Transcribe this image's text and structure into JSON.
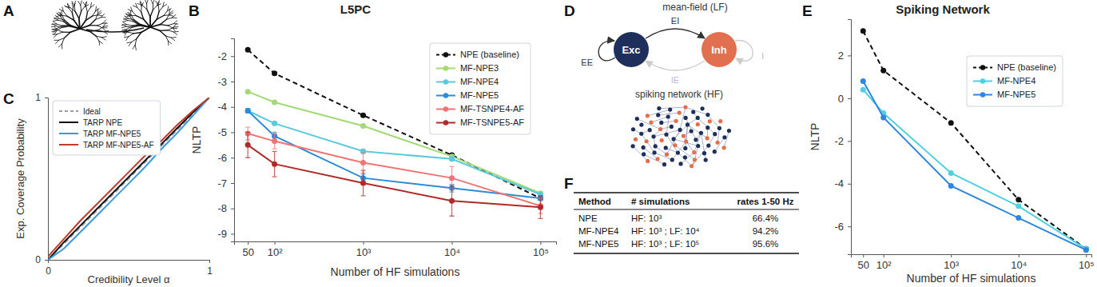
{
  "panel_labels": [
    "A",
    "B",
    "C",
    "D",
    "E",
    "F"
  ],
  "chart_data": [
    {
      "type": "line",
      "title": "L5PC",
      "x_label": "Number of HF simulations",
      "y_label": "NLTP",
      "log": "x",
      "marker": "circle",
      "legend": "upper-right",
      "x": [
        50,
        100,
        1000,
        10000,
        100000
      ],
      "xlim": [
        35,
        150000
      ],
      "xticks": [
        50,
        {
          "value": 100,
          "label": "10²"
        },
        {
          "value": 1000,
          "label": "10³"
        },
        {
          "value": 10000,
          "label": "10⁴"
        },
        {
          "value": 100000,
          "label": "10⁵"
        }
      ],
      "ylim": [
        -9.3,
        -1.3
      ],
      "yticks": [
        -9,
        -8,
        -7,
        -6,
        -5,
        -4,
        -3,
        -2
      ],
      "series": [
        {
          "name": "NPE (baseline)",
          "color": "#111111",
          "line_style": "dashed",
          "values": [
            -1.75,
            -2.68,
            -4.33,
            -5.9,
            -7.6
          ],
          "errors": [
            0.05,
            0.05,
            0.05,
            0.05,
            0.05
          ]
        },
        {
          "name": "MF-NPE3",
          "color": "#a3d977",
          "values": [
            -3.4,
            -3.82,
            -4.75,
            -5.95,
            -7.4
          ],
          "errors": [
            0.05,
            0.05,
            0.05,
            0.05,
            0.05
          ]
        },
        {
          "name": "MF-NPE4",
          "color": "#5cc9d8",
          "values": [
            -4.15,
            -4.65,
            -5.75,
            -6.05,
            -7.45
          ],
          "errors": [
            0.05,
            0.05,
            0.08,
            0.08,
            0.05
          ]
        },
        {
          "name": "MF-NPE5",
          "color": "#2e8bd6",
          "values": [
            -4.15,
            -5.15,
            -6.8,
            -7.2,
            -7.6
          ],
          "errors": [
            0.08,
            0.15,
            0.15,
            0.15,
            0.08
          ]
        },
        {
          "name": "MF-TSNPE4-AF",
          "color": "#ef7474",
          "values": [
            -5.05,
            -5.35,
            -6.2,
            -6.8,
            -7.9
          ],
          "errors": [
            0.25,
            0.3,
            0.4,
            0.45,
            0.3
          ]
        },
        {
          "name": "MF-TSNPE5-AF",
          "color": "#b02a2a",
          "values": [
            -5.5,
            -6.25,
            -7.0,
            -7.7,
            -7.95
          ],
          "errors": [
            0.5,
            0.5,
            0.5,
            0.6,
            0.45
          ]
        }
      ]
    },
    {
      "type": "line",
      "x_label": "Credibility Level α",
      "y_label": "Exp. Coverage Probability",
      "legend": "upper-left",
      "x": [
        0,
        0.1,
        0.2,
        0.3,
        0.4,
        0.5,
        0.6,
        0.7,
        0.8,
        0.9,
        1
      ],
      "xlim": [
        0,
        1
      ],
      "xticks": [
        0,
        1
      ],
      "ylim": [
        0,
        1
      ],
      "yticks": [
        0,
        1
      ],
      "series": [
        {
          "name": "Ideal",
          "color": "#9a9a9a",
          "line_style": "dashed",
          "values": [
            0,
            0.1,
            0.2,
            0.3,
            0.4,
            0.5,
            0.6,
            0.7,
            0.8,
            0.9,
            1
          ]
        },
        {
          "name": "TARP NPE",
          "color": "#111111",
          "values": [
            0,
            0.11,
            0.21,
            0.31,
            0.41,
            0.51,
            0.61,
            0.71,
            0.81,
            0.91,
            1
          ]
        },
        {
          "name": "TARP MF-NPE5",
          "color": "#3a9ad9",
          "values": [
            0,
            0.07,
            0.17,
            0.27,
            0.37,
            0.47,
            0.57,
            0.68,
            0.78,
            0.89,
            1
          ]
        },
        {
          "name": "TARP MF-NPE5-AF",
          "color": "#c0392b",
          "values": [
            0.02,
            0.13,
            0.24,
            0.34,
            0.44,
            0.54,
            0.64,
            0.73,
            0.83,
            0.92,
            1
          ]
        }
      ]
    },
    {
      "type": "line",
      "title": "Spiking Network",
      "x_label": "Number of HF simulations",
      "y_label": "NLTP",
      "log": "x",
      "marker": "circle",
      "legend": "upper-right",
      "x": [
        50,
        100,
        1000,
        10000,
        100000
      ],
      "xlim": [
        33,
        120000
      ],
      "xticks": [
        50,
        {
          "value": 100,
          "label": "10²"
        },
        {
          "value": 1000,
          "label": "10³"
        },
        {
          "value": 10000,
          "label": "10⁴"
        },
        {
          "value": 100000,
          "label": "10⁵"
        }
      ],
      "ylim": [
        -7.3,
        3.7
      ],
      "yticks": [
        -6,
        -4,
        -2,
        0,
        2
      ],
      "series": [
        {
          "name": "NPE (baseline)",
          "color": "#111111",
          "line_style": "dashed",
          "values": [
            3.15,
            1.3,
            -1.15,
            -4.75,
            -7.05
          ]
        },
        {
          "name": "MF-NPE4",
          "color": "#4fd0e0",
          "values": [
            0.4,
            -0.7,
            -3.5,
            -5.05,
            -7.05
          ]
        },
        {
          "name": "MF-NPE5",
          "color": "#2e86de",
          "values": [
            0.8,
            -0.9,
            -4.1,
            -5.6,
            -7.1
          ]
        }
      ]
    }
  ],
  "diagram": {
    "lf_title": "mean-field (LF)",
    "hf_title": "spiking network (HF)",
    "nodes": [
      {
        "label": "Exc"
      },
      {
        "label": "Inh"
      }
    ],
    "edges": [
      {
        "label": "EE"
      },
      {
        "label": "EI"
      },
      {
        "label": "IE"
      },
      {
        "label": "I"
      }
    ]
  },
  "table": {
    "header": [
      "Method",
      "# simulations",
      "rates 1-50 Hz"
    ],
    "rows": [
      [
        "NPE",
        "HF: 10³",
        "66.4%"
      ],
      [
        "MF-NPE4",
        "HF: 10³ ; LF: 10⁴",
        "94.2%"
      ],
      [
        "MF-NPE5",
        "HF: 10³ ; LF: 10⁵",
        "95.6%"
      ]
    ]
  }
}
